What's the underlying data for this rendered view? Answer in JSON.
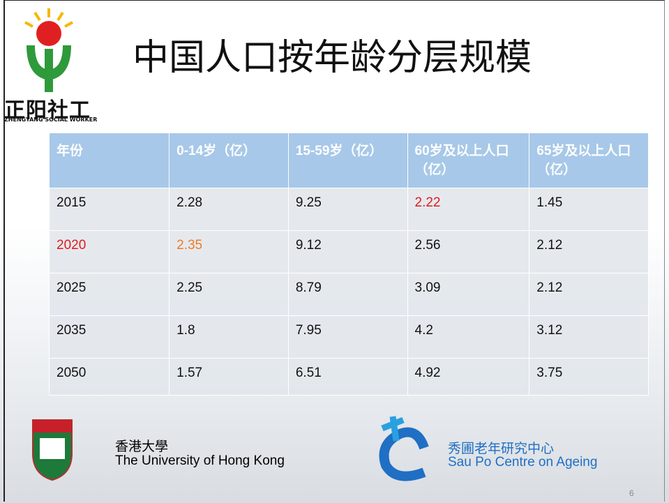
{
  "logo": {
    "name": "正阳社工",
    "subtitle": "ZHENGYANG SOCIAL WORKER"
  },
  "title": "中国人口按年龄分层规模",
  "table": {
    "header": [
      "年份",
      "0-14岁（亿）",
      "15-59岁（亿）",
      "60岁及以上人口（亿）",
      "65岁及以上人口（亿）"
    ],
    "rows": [
      [
        "2015",
        "2.28",
        "9.25",
        "2.22",
        "1.45"
      ],
      [
        "2020",
        "2.35",
        "9.12",
        "2.56",
        "2.12"
      ],
      [
        "2025",
        "2.25",
        "8.79",
        "3.09",
        "2.12"
      ],
      [
        "2035",
        "1.8",
        "7.95",
        "4.2",
        "3.12"
      ],
      [
        "2050",
        "1.57",
        "6.51",
        "4.92",
        "3.75"
      ]
    ]
  },
  "footer": {
    "hku_cn": "香港大學",
    "hku_en": "The University of Hong Kong",
    "saupo_cn": "秀圃老年研究中心",
    "saupo_en": "Sau Po Centre on Ageing",
    "page": "6"
  }
}
